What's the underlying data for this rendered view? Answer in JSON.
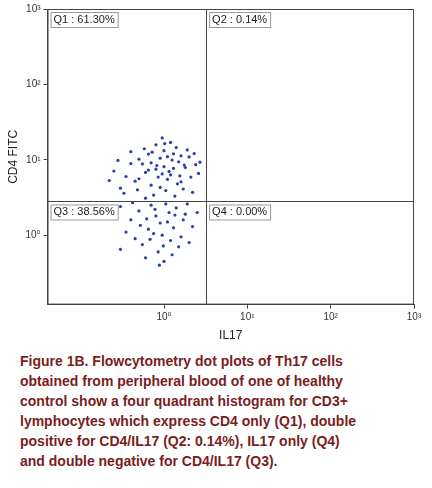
{
  "chart_data": {
    "type": "scatter",
    "x_label": "IL17",
    "y_label": "CD4 FITC",
    "log": true,
    "grid": false,
    "color": "#2a3fa8",
    "xlim": [
      0.04,
      1000
    ],
    "ylim": [
      0.12,
      1000
    ],
    "xticks": [
      {
        "value": 1,
        "label": "10⁰"
      },
      {
        "value": 10,
        "label": "10¹"
      },
      {
        "value": 100,
        "label": "10²"
      },
      {
        "value": 1000,
        "label": "10³"
      }
    ],
    "yticks": [
      {
        "value": 1,
        "label": "10⁰"
      },
      {
        "value": 10,
        "label": "10¹"
      },
      {
        "value": 100,
        "label": "10²"
      },
      {
        "value": 1000,
        "label": "10³"
      }
    ],
    "quadrant_gate": {
      "x": 3.2,
      "y": 2.8
    },
    "annotations": [
      "Q1 : 61.30%",
      "Q2 : 0.14%",
      "Q3 : 38.56%",
      "Q4 : 0.00%"
    ],
    "points": [
      [
        0.45,
        5.2
      ],
      [
        0.6,
        6.8
      ],
      [
        0.8,
        7.5
      ],
      [
        1.0,
        8.1
      ],
      [
        1.2,
        6.3
      ],
      [
        1.5,
        9.4
      ],
      [
        0.9,
        10.5
      ],
      [
        0.7,
        4.6
      ],
      [
        1.1,
        5.5
      ],
      [
        1.3,
        12.0
      ],
      [
        0.55,
        8.8
      ],
      [
        0.35,
        6.0
      ],
      [
        0.3,
        4.2
      ],
      [
        0.25,
        7.1
      ],
      [
        1.8,
        7.9
      ],
      [
        2.1,
        5.9
      ],
      [
        2.4,
        8.6
      ],
      [
        1.6,
        11.3
      ],
      [
        1.4,
        14.5
      ],
      [
        1.0,
        13.2
      ],
      [
        0.8,
        15.8
      ],
      [
        0.65,
        11.9
      ],
      [
        0.5,
        10.2
      ],
      [
        0.4,
        12.8
      ],
      [
        1.2,
        17.0
      ],
      [
        0.95,
        19.5
      ],
      [
        1.7,
        4.1
      ],
      [
        2.0,
        10.9
      ],
      [
        2.6,
        6.6
      ],
      [
        0.75,
        3.4
      ],
      [
        1.05,
        3.9
      ],
      [
        0.6,
        3.1
      ],
      [
        1.35,
        3.3
      ],
      [
        0.85,
        5.9
      ],
      [
        1.15,
        7.0
      ],
      [
        0.7,
        9.1
      ],
      [
        1.25,
        9.9
      ],
      [
        0.95,
        6.5
      ],
      [
        1.55,
        6.1
      ],
      [
        0.5,
        5.6
      ],
      [
        0.4,
        8.9
      ],
      [
        0.28,
        9.8
      ],
      [
        0.22,
        5.3
      ],
      [
        1.9,
        13.5
      ],
      [
        2.3,
        12.1
      ],
      [
        0.9,
        4.3
      ],
      [
        1.45,
        4.8
      ],
      [
        0.65,
        7.3
      ],
      [
        1.75,
        8.5
      ],
      [
        2.7,
        9.3
      ],
      [
        1.1,
        11.0
      ],
      [
        0.58,
        14.0
      ],
      [
        0.33,
        3.6
      ],
      [
        2.2,
        3.7
      ],
      [
        1.02,
        16.4
      ],
      [
        1.3,
        7.7
      ],
      [
        0.82,
        8.4
      ],
      [
        0.48,
        4.0
      ],
      [
        1.6,
        5.1
      ],
      [
        0.72,
        12.6
      ],
      [
        0.5,
        2.1
      ],
      [
        0.8,
        1.8
      ],
      [
        1.1,
        1.5
      ],
      [
        1.4,
        2.3
      ],
      [
        0.65,
        1.2
      ],
      [
        0.95,
        1.0
      ],
      [
        1.2,
        0.85
      ],
      [
        0.4,
        1.6
      ],
      [
        0.3,
        2.4
      ],
      [
        1.8,
        1.9
      ],
      [
        2.2,
        1.3
      ],
      [
        0.55,
        0.75
      ],
      [
        0.85,
        0.6
      ],
      [
        1.05,
        2.6
      ],
      [
        1.6,
        0.95
      ],
      [
        0.7,
        2.5
      ],
      [
        0.35,
        1.1
      ],
      [
        0.25,
        1.9
      ],
      [
        1.3,
        1.25
      ],
      [
        0.9,
        1.45
      ],
      [
        0.6,
        0.5
      ],
      [
        1.0,
        0.45
      ],
      [
        1.5,
        0.7
      ],
      [
        2.5,
        2.0
      ],
      [
        0.45,
        0.9
      ],
      [
        0.75,
        1.05
      ],
      [
        1.15,
        2.0
      ],
      [
        0.62,
        1.65
      ],
      [
        1.9,
        2.6
      ],
      [
        0.98,
        0.72
      ],
      [
        0.42,
        2.7
      ],
      [
        1.25,
        0.55
      ],
      [
        0.78,
        2.2
      ],
      [
        2.0,
        0.8
      ],
      [
        0.52,
        1.35
      ],
      [
        1.7,
        1.6
      ],
      [
        0.88,
        0.4
      ],
      [
        0.3,
        0.65
      ],
      [
        1.35,
        1.85
      ],
      [
        0.68,
        0.88
      ]
    ],
    "caption": [
      "Figure 1B. Flowcytometry dot plots of Th17 cells",
      "obtained from peripheral blood of one of healthy",
      "control show a four quadrant histogram for CD3+",
      "lymphocytes which express CD4 only (Q1), double",
      "positive for CD4/IL17 (Q2: 0.14%), IL17 only (Q4)",
      "and double negative for CD4/IL17 (Q3)."
    ]
  }
}
